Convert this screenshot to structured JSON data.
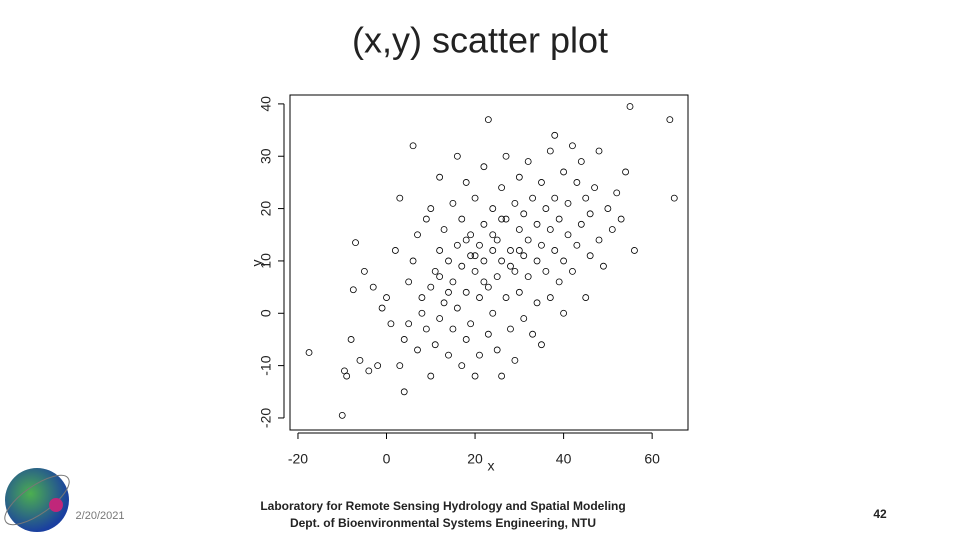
{
  "chart_data": {
    "type": "scatter",
    "title": "(x,y) scatter plot",
    "x_label": "x",
    "y_label": "y",
    "x": [
      -17.5,
      -10,
      -9.5,
      -9,
      -8,
      -7,
      -7.5,
      -6,
      -5,
      -4,
      -3,
      -2,
      -1,
      0,
      1,
      2,
      3,
      3,
      4,
      4,
      5,
      5,
      6,
      6,
      7,
      7,
      8,
      8,
      9,
      9,
      10,
      10,
      10,
      11,
      11,
      12,
      12,
      12,
      13,
      13,
      14,
      14,
      15,
      15,
      15,
      16,
      16,
      16,
      17,
      17,
      17,
      18,
      18,
      18,
      19,
      19,
      19,
      20,
      20,
      20,
      21,
      21,
      21,
      22,
      22,
      22,
      23,
      23,
      23,
      24,
      24,
      24,
      25,
      25,
      25,
      26,
      26,
      26,
      27,
      27,
      27,
      28,
      28,
      29,
      29,
      29,
      30,
      30,
      30,
      31,
      31,
      31,
      32,
      32,
      32,
      33,
      33,
      34,
      34,
      34,
      35,
      35,
      35,
      36,
      36,
      37,
      37,
      37,
      38,
      38,
      38,
      39,
      39,
      40,
      40,
      40,
      41,
      41,
      42,
      42,
      43,
      43,
      44,
      44,
      45,
      45,
      46,
      46,
      47,
      48,
      48,
      49,
      50,
      51,
      52,
      53,
      54,
      55,
      56,
      64,
      65,
      18,
      20,
      22,
      24,
      26,
      28,
      14,
      12,
      30
    ],
    "y": [
      -7.5,
      -19.5,
      -11,
      -12,
      -5,
      13.5,
      4.5,
      -9,
      8,
      -11,
      5,
      -10,
      1,
      3,
      -2,
      12,
      22,
      -10,
      -15,
      -5,
      6,
      -2,
      32,
      10,
      15,
      -7,
      0,
      3,
      -3,
      18,
      -12,
      5,
      20,
      8,
      -6,
      26,
      12,
      -1,
      2,
      16,
      10,
      -8,
      21,
      6,
      -3,
      30,
      13,
      1,
      9,
      -10,
      18,
      4,
      25,
      -5,
      11,
      15,
      -2,
      8,
      22,
      -12,
      13,
      3,
      -8,
      17,
      10,
      28,
      37,
      5,
      -4,
      12,
      20,
      0,
      14,
      7,
      -7,
      24,
      10,
      -12,
      18,
      3,
      30,
      12,
      -3,
      21,
      8,
      -9,
      16,
      26,
      4,
      11,
      19,
      -1,
      14,
      7,
      29,
      22,
      -4,
      10,
      17,
      2,
      25,
      13,
      -6,
      20,
      8,
      31,
      16,
      3,
      34,
      12,
      22,
      6,
      18,
      27,
      10,
      0,
      15,
      21,
      32,
      8,
      25,
      13,
      17,
      29,
      3,
      22,
      11,
      19,
      24,
      14,
      31,
      9,
      20,
      16,
      23,
      18,
      27,
      39.5,
      12,
      37,
      22,
      14,
      11,
      6,
      15,
      18,
      9,
      4,
      7,
      12
    ],
    "color": "#000000",
    "xlim": [
      -21.8,
      68.1
    ],
    "xticks": [
      -20,
      0,
      20,
      40,
      60
    ],
    "ylim": [
      -22.3,
      41.7
    ],
    "yticks": [
      -20,
      -10,
      0,
      10,
      20,
      30,
      40
    ]
  },
  "footer": {
    "date": "2/20/2021",
    "lab_line1": "Laboratory for Remote Sensing Hydrology and Spatial Modeling",
    "lab_line2": "Dept. of Bioenvironmental Systems Engineering, NTU",
    "page_number": "42"
  }
}
